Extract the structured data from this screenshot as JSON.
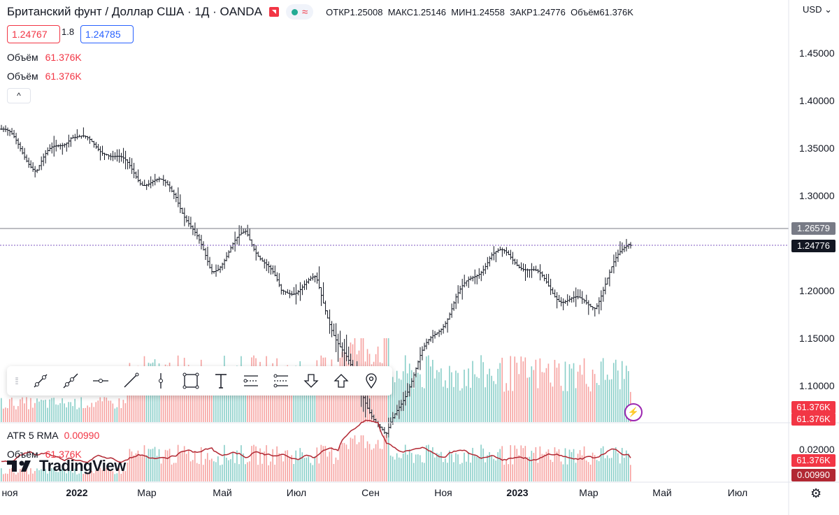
{
  "header": {
    "symbol_title": "Британский фунт / Доллар США · 1Д · OANDA",
    "ohlc": [
      {
        "label": "ОТКР",
        "value": "1.25008"
      },
      {
        "label": "МАКС",
        "value": "1.25146"
      },
      {
        "label": "МИН",
        "value": "1.24558"
      },
      {
        "label": "ЗАКР",
        "value": "1.24776"
      },
      {
        "label": "Объём",
        "value": "61.376K"
      }
    ],
    "sell_price": "1.24767",
    "spread": "1.8",
    "buy_price": "1.24785",
    "currency": "USD",
    "currency_arrow": "⌄",
    "collapse_glyph": "^",
    "status_icon": "≈"
  },
  "legends": {
    "volume_rows": [
      {
        "label": "Объём",
        "value": "61.376K"
      },
      {
        "label": "Объём",
        "value": "61.376K"
      }
    ],
    "atr": {
      "label": "ATR 5 RMA",
      "value": "0.00990"
    },
    "volume_lower": {
      "label": "Объём",
      "value": "61.376K"
    }
  },
  "price_axis": {
    "ticks": [
      "1.45000",
      "1.40000",
      "1.35000",
      "1.30000",
      "1.25000",
      "1.20000",
      "1.15000",
      "1.10000"
    ],
    "tags": [
      {
        "value": "1.26579",
        "color": "#787b86"
      },
      {
        "value": "1.24776",
        "color": "#131722"
      },
      {
        "value": "61.376K",
        "color": "#f23645"
      },
      {
        "value": "61.376K",
        "color": "#f23645"
      }
    ]
  },
  "atr_axis": {
    "ticks": [
      "0.02000"
    ],
    "tags": [
      {
        "value": "61.376K",
        "color": "#f23645"
      },
      {
        "value": "0.00990",
        "color": "#b22833"
      }
    ]
  },
  "time_axis": [
    "ноя",
    "2022",
    "Мар",
    "Май",
    "Июл",
    "Сен",
    "Ноя",
    "2023",
    "Мар",
    "Май",
    "Июл"
  ],
  "toolbar": {
    "tools": [
      "trend-line-icon",
      "ray-icon",
      "horizontal-ray-icon",
      "extended-line-icon",
      "vertical-line-icon",
      "rectangle-icon",
      "text-icon",
      "long-position-icon",
      "short-position-icon",
      "arrow-down-icon",
      "arrow-up-icon",
      "pin-icon"
    ]
  },
  "branding": {
    "logo_text": "TradingView"
  },
  "colors": {
    "up": "#26a69a",
    "down": "#ef5350",
    "line": "#131722",
    "atr": "#b22833",
    "dotted": "#7e57c2"
  },
  "chart_data": {
    "type": "ohlc",
    "symbol": "GBPUSD",
    "timeframe": "1D",
    "price_range": [
      1.06,
      1.47
    ],
    "horizontal_levels": [
      1.26579,
      1.24776
    ],
    "price_path": [
      [
        "2021-11",
        1.37
      ],
      [
        "2021-12",
        1.32
      ],
      [
        "2022-01",
        1.37
      ],
      [
        "2022-02",
        1.355
      ],
      [
        "2022-03",
        1.31
      ],
      [
        "2022-04",
        1.3
      ],
      [
        "2022-05",
        1.23
      ],
      [
        "2022-06",
        1.26
      ],
      [
        "2022-07",
        1.19
      ],
      [
        "2022-08",
        1.215
      ],
      [
        "2022-09",
        1.12
      ],
      [
        "2022-09-26",
        1.035
      ],
      [
        "2022-10",
        1.13
      ],
      [
        "2022-11",
        1.2
      ],
      [
        "2022-12",
        1.235
      ],
      [
        "2023-01",
        1.22
      ],
      [
        "2023-02",
        1.2
      ],
      [
        "2023-03",
        1.19
      ],
      [
        "2023-04",
        1.248
      ]
    ],
    "last_close": 1.24776,
    "atr": {
      "period": 5,
      "type": "RMA",
      "last": 0.0099,
      "range": [
        0,
        0.025
      ]
    },
    "volume_last": "61.376K"
  }
}
